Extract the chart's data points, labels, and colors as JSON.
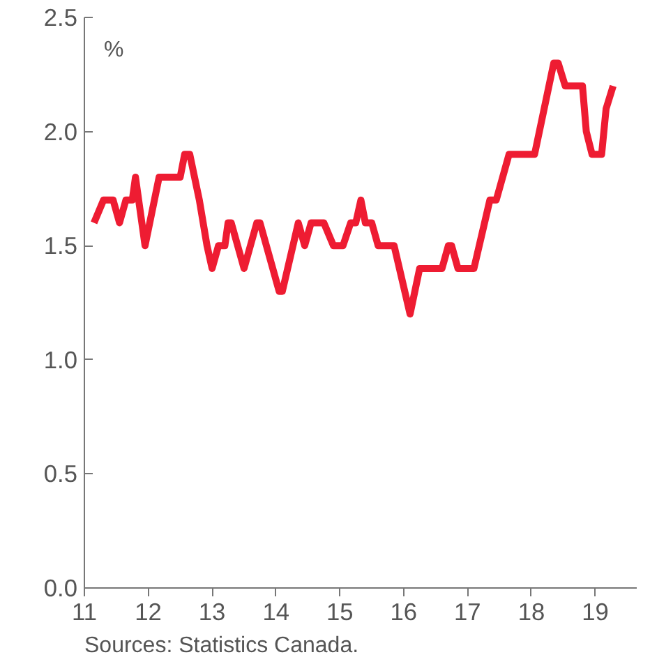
{
  "chart_data": {
    "type": "line",
    "ylabel": "%",
    "annotations": [
      "Sources: Statistics Canada."
    ],
    "x": [
      11.15,
      11.3,
      11.45,
      11.55,
      11.65,
      11.75,
      11.8,
      11.95,
      12.17,
      12.5,
      12.57,
      12.65,
      12.8,
      12.92,
      13.0,
      13.1,
      13.2,
      13.25,
      13.3,
      13.5,
      13.7,
      13.75,
      14.05,
      14.1,
      14.35,
      14.45,
      14.55,
      14.75,
      14.9,
      15.05,
      15.17,
      15.25,
      15.33,
      15.4,
      15.5,
      15.6,
      15.85,
      16.1,
      16.25,
      16.6,
      16.7,
      16.75,
      16.85,
      17.1,
      17.35,
      17.45,
      17.65,
      18.05,
      18.35,
      18.42,
      18.53,
      18.8,
      18.86,
      18.95,
      19.1,
      19.17,
      19.28
    ],
    "series": [
      {
        "color": "#ee1c32",
        "values": [
          1.6,
          1.7,
          1.7,
          1.6,
          1.7,
          1.7,
          1.8,
          1.5,
          1.8,
          1.8,
          1.9,
          1.9,
          1.7,
          1.5,
          1.4,
          1.5,
          1.5,
          1.6,
          1.6,
          1.4,
          1.6,
          1.6,
          1.3,
          1.3,
          1.6,
          1.5,
          1.6,
          1.6,
          1.5,
          1.5,
          1.6,
          1.6,
          1.7,
          1.6,
          1.6,
          1.5,
          1.5,
          1.2,
          1.4,
          1.4,
          1.5,
          1.5,
          1.4,
          1.4,
          1.7,
          1.7,
          1.9,
          1.9,
          2.3,
          2.3,
          2.2,
          2.2,
          2.0,
          1.9,
          1.9,
          2.1,
          2.2
        ]
      }
    ],
    "xlim": [
      11,
      19.65
    ],
    "ylim": [
      0,
      2.5
    ],
    "xticks": [
      11,
      12,
      13,
      14,
      15,
      16,
      17,
      18,
      19
    ],
    "yticks": [
      {
        "value": 0,
        "label": "0.0"
      },
      {
        "value": 0.5,
        "label": "0.5"
      },
      {
        "value": 1,
        "label": "1.0"
      },
      {
        "value": 1.5,
        "label": "1.5"
      },
      {
        "value": 2,
        "label": "2.0"
      },
      {
        "value": 2.5,
        "label": "2.5"
      }
    ],
    "grid": false,
    "marker": "none",
    "line_style": "solid"
  }
}
